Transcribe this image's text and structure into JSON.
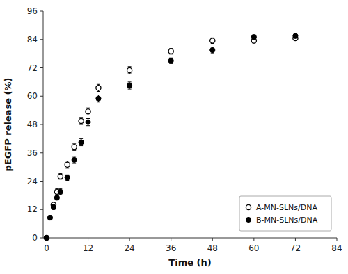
{
  "chart_data": {
    "type": "scatter",
    "xlabel": "Time (h)",
    "ylabel": "pEGFP release (%)",
    "xlim": [
      -1,
      84
    ],
    "ylim": [
      0,
      96
    ],
    "xticks": [
      0,
      12,
      24,
      36,
      48,
      60,
      72,
      84
    ],
    "yticks": [
      0,
      12,
      24,
      36,
      48,
      60,
      72,
      84,
      96
    ],
    "grid": false,
    "legend": "lower right",
    "series": [
      {
        "name": "A-MN-SLNs/DNA",
        "color": "#000000",
        "marker": "circle-open",
        "x": [
          0,
          2,
          3,
          4,
          6,
          8,
          10,
          12,
          15,
          24,
          36,
          48,
          60,
          72
        ],
        "values": [
          0,
          14.0,
          19.5,
          26.0,
          31.0,
          38.5,
          49.5,
          53.5,
          63.5,
          71.0,
          79.0,
          83.5,
          83.5,
          84.5
        ],
        "errors": [
          0.0,
          1.0,
          1.2,
          1.2,
          1.5,
          1.5,
          1.5,
          1.5,
          1.5,
          1.5,
          1.2,
          1.2,
          1.0,
          1.0
        ]
      },
      {
        "name": "B-MN-SLNs/DNA",
        "color": "#000000",
        "marker": "circle",
        "x": [
          0,
          1,
          2,
          3,
          4,
          6,
          8,
          10,
          12,
          15,
          24,
          36,
          48,
          60,
          72
        ],
        "values": [
          0,
          8.5,
          13.0,
          17.0,
          19.5,
          25.5,
          33.0,
          40.5,
          49.0,
          59.0,
          64.5,
          75.0,
          79.5,
          85.0,
          85.5
        ],
        "errors": [
          0.0,
          1.0,
          1.0,
          1.0,
          1.2,
          1.2,
          1.5,
          1.5,
          1.5,
          1.5,
          1.5,
          1.2,
          1.2,
          1.0,
          1.0
        ]
      }
    ]
  }
}
